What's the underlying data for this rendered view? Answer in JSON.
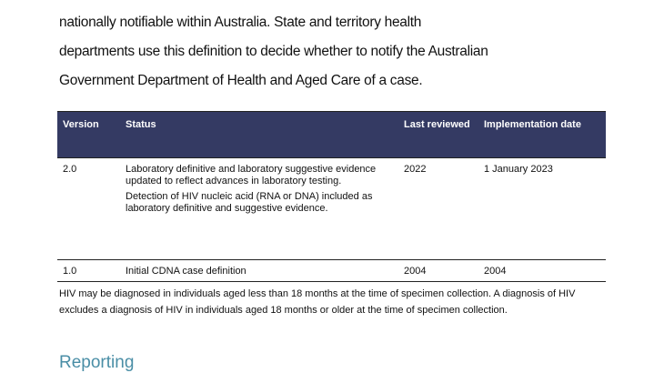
{
  "intro": {
    "lines": [
      "nationally notifiable within Australia. State and territory health",
      "departments use this definition to decide whether to notify the Australian",
      "Government Department of Health and Aged Care of a case."
    ]
  },
  "table": {
    "headers": [
      "Version",
      "Status",
      "Last reviewed",
      "Implementation date"
    ],
    "rows": [
      {
        "version": "2.0",
        "status": [
          "Laboratory definitive and laboratory suggestive evidence updated to reflect advances in laboratory testing.",
          "Detection of HIV nucleic acid (RNA or DNA) included as laboratory definitive and suggestive evidence."
        ],
        "last_reviewed": "2022",
        "implementation_date": "1 January 2023"
      },
      {
        "version": "1.0",
        "status": [
          "Initial CDNA case definition"
        ],
        "last_reviewed": "2004",
        "implementation_date": "2004"
      }
    ]
  },
  "note": "HIV may be diagnosed in individuals aged  less than 18 months at the time of specimen collection. A diagnosis of HIV excludes a diagnosis of HIV in individuals aged 18 months or older at the time of specimen collection.",
  "section_heading": "Reporting",
  "colors": {
    "header_bg": "#343a63",
    "heading": "#4a8ea6"
  }
}
